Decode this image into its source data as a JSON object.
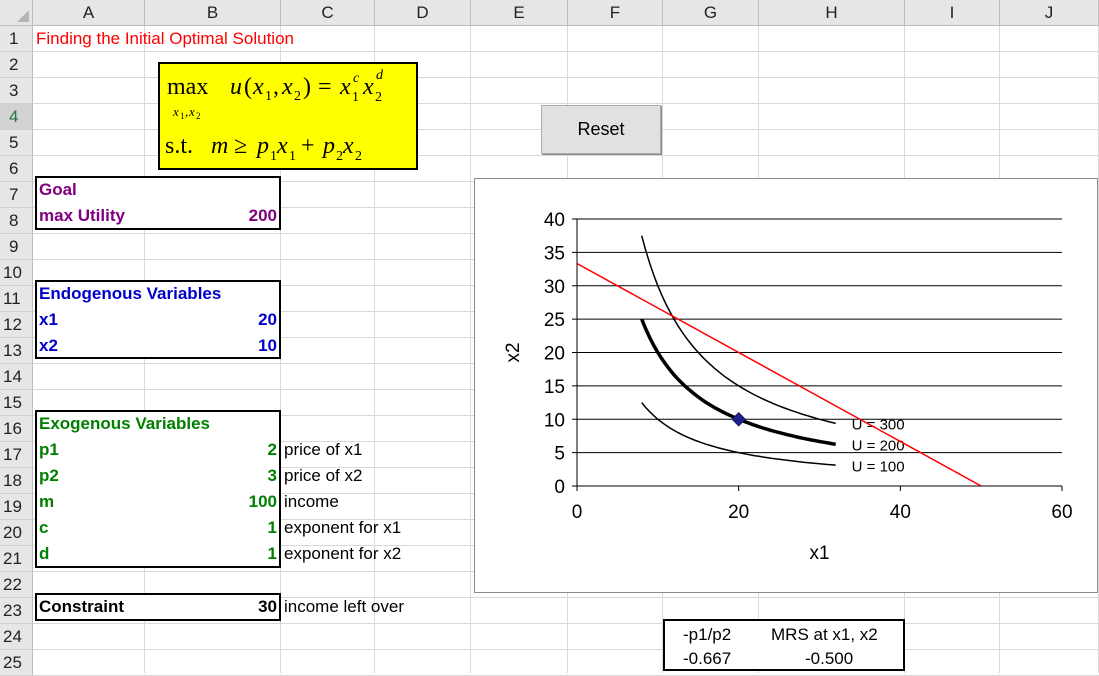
{
  "columns": [
    "A",
    "B",
    "C",
    "D",
    "E",
    "F",
    "G",
    "H",
    "I",
    "J"
  ],
  "rows": [
    "1",
    "2",
    "3",
    "4",
    "5",
    "6",
    "7",
    "8",
    "9",
    "10",
    "11",
    "12",
    "13",
    "14",
    "15",
    "16",
    "17",
    "18",
    "19",
    "20",
    "21",
    "22",
    "23",
    "24",
    "25"
  ],
  "selected_row": "4",
  "title": "Finding the Initial Optimal Solution",
  "formula": {
    "line1": "max  u(x1, x2) = x1^c x2^d",
    "line2": "s.t.  m ≥ p1x1 + p2x2"
  },
  "reset_label": "Reset",
  "goal": {
    "header": "Goal",
    "label": "max Utility",
    "value": "200"
  },
  "endogenous": {
    "header": "Endogenous Variables",
    "x1_label": "x1",
    "x1_value": "20",
    "x2_label": "x2",
    "x2_value": "10"
  },
  "exogenous": {
    "header": "Exogenous Variables",
    "items": [
      {
        "label": "p1",
        "value": "2",
        "desc": "price of x1"
      },
      {
        "label": "p2",
        "value": "3",
        "desc": "price of x2"
      },
      {
        "label": "m",
        "value": "100",
        "desc": "income"
      },
      {
        "label": "c",
        "value": "1",
        "desc": "exponent for x1"
      },
      {
        "label": "d",
        "value": "1",
        "desc": "exponent for x2"
      }
    ]
  },
  "constraint": {
    "label": "Constraint",
    "value": "30",
    "desc": "income left over"
  },
  "mrs_table": {
    "h1": "-p1/p2",
    "h2": "MRS at x1, x2",
    "v1": "-0.667",
    "v2": "-0.500"
  },
  "colors": {
    "title": "#ff0000",
    "goal": "#800080",
    "endogenous": "#0000cc",
    "exogenous": "#008000",
    "formula_bg": "#ffff00"
  },
  "chart_data": {
    "type": "line",
    "xlabel": "x1",
    "ylabel": "x2",
    "xlim": [
      0,
      60
    ],
    "ylim": [
      0,
      40
    ],
    "xticks": [
      0,
      20,
      40,
      60
    ],
    "yticks": [
      0,
      5,
      10,
      15,
      20,
      25,
      30,
      35,
      40
    ],
    "grid": "horizontal",
    "series": [
      {
        "name": "U = 300",
        "x": [
          8,
          10,
          12,
          15,
          20,
          25,
          32
        ],
        "y": [
          37.5,
          30,
          25,
          20,
          15,
          12,
          9.4
        ],
        "color": "#000000"
      },
      {
        "name": "U = 200",
        "x": [
          8,
          10,
          12,
          15,
          20,
          25,
          32
        ],
        "y": [
          25,
          20,
          16.7,
          13.3,
          10,
          8,
          6.25
        ],
        "color": "#000000",
        "bold": true
      },
      {
        "name": "U = 100",
        "x": [
          8,
          10,
          12,
          15,
          20,
          25,
          32
        ],
        "y": [
          12.5,
          10,
          8.3,
          6.7,
          5,
          4,
          3.1
        ],
        "color": "#000000"
      },
      {
        "name": "",
        "x": [
          0,
          50
        ],
        "y": [
          33.33,
          0
        ],
        "color": "#ff0000"
      }
    ],
    "point": {
      "x": 20,
      "y": 10,
      "color": "#1f1f8c"
    }
  }
}
